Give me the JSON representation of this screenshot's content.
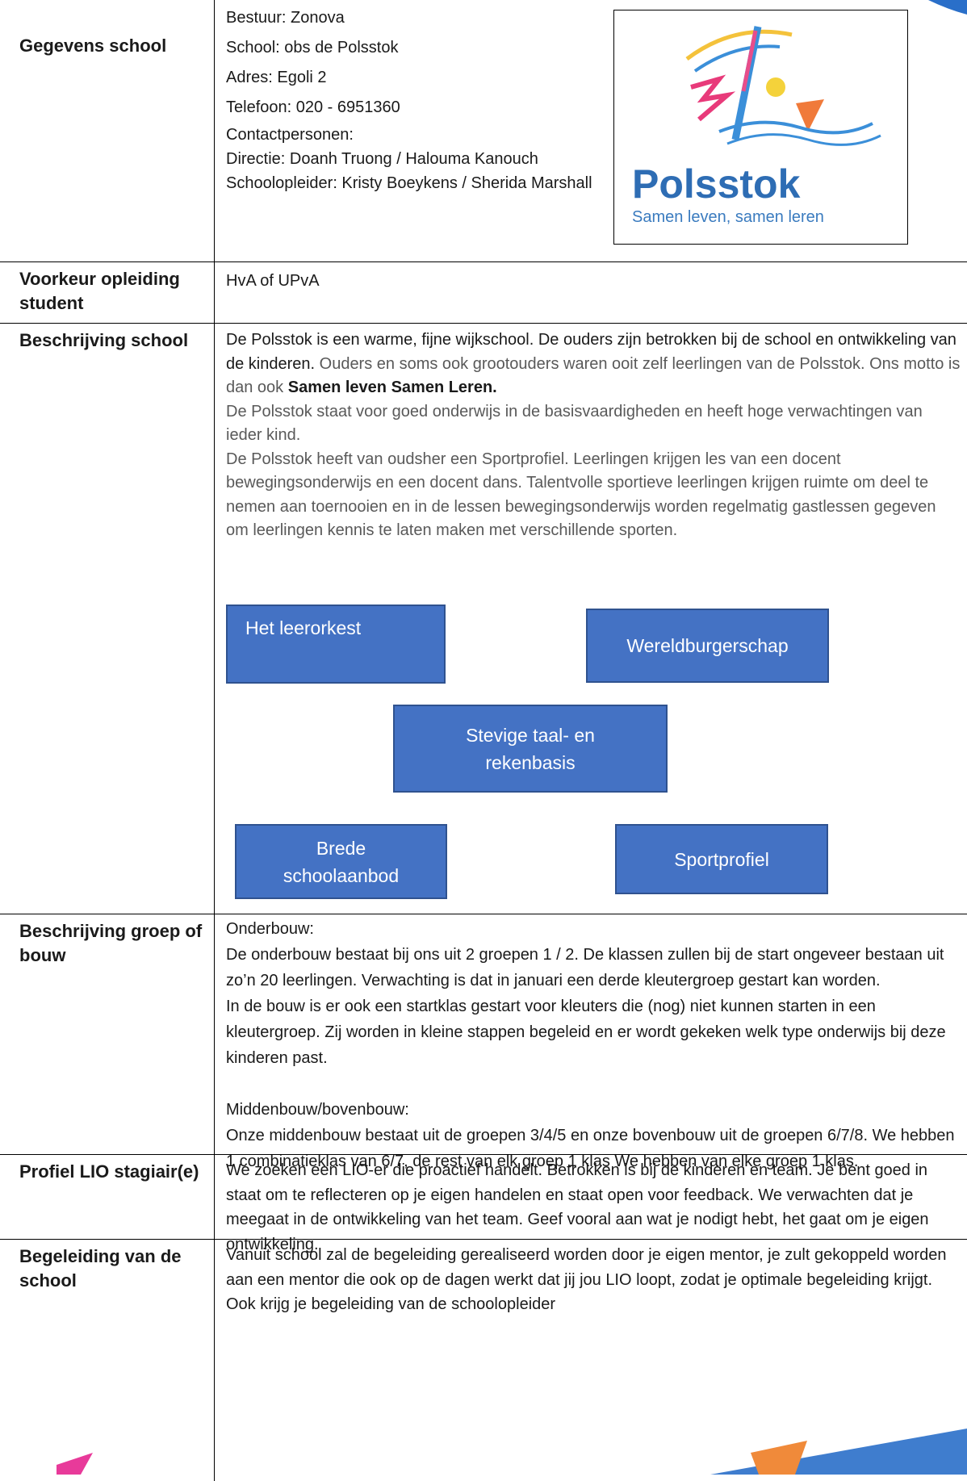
{
  "rows": [
    {
      "label": "Gegevens school",
      "lines": [
        "Bestuur: Zonova",
        "School: obs de Polsstok",
        "Adres: Egoli 2",
        "Telefoon: 020 - 6951360",
        "Contactpersonen:",
        "Directie: Doanh Truong / Halouma Kanouch",
        "Schoolopleider: Kristy Boeykens / Sherida Marshall"
      ]
    },
    {
      "label": "Voorkeur opleiding student",
      "lines": [
        "HvA of UPvA"
      ]
    },
    {
      "label": "Beschrijving school",
      "intro": "De Polsstok is een warme, fijne wijkschool. De ouders zijn betrokken bij de school en ontwikkeling van de kinderen.",
      "intro_grey": " Ouders en soms ook grootouders waren ooit zelf leerlingen van de Polsstok.  Ons motto is dan ook ",
      "motto": "Samen leven Samen Leren.",
      "lines": [
        "De Polsstok staat voor goed onderwijs in de basisvaardigheden en heeft hoge verwachtingen van ieder kind.",
        "De Polsstok heeft van oudsher een Sportprofiel. Leerlingen krijgen les van een docent bewegingsonderwijs en een docent dans. Talentvolle sportieve leerlingen krijgen ruimte om deel te nemen aan toernooien en in de lessen bewegingsonderwijs worden regelmatig gastlessen gegeven om leerlingen kennis te laten maken met verschillende sporten."
      ],
      "blocks": [
        "Het leerorkest",
        "Wereldburgerschap",
        "Stevige taal- en rekenbasis",
        "Brede schoolaanbod",
        "Sportprofiel"
      ]
    },
    {
      "label": "Beschrijving groep of bouw",
      "lines": [
        "Onderbouw:",
        "De onderbouw bestaat bij ons uit 2 groepen 1 / 2. De klassen zullen bij de start ongeveer bestaan uit zo’n 20 leerlingen. Verwachting is dat in januari een derde kleutergroep gestart kan worden.",
        "In de bouw is er ook een startklas gestart voor kleuters die (nog) niet kunnen starten in een kleutergroep. Zij worden in kleine stappen begeleid en er wordt gekeken welk type onderwijs bij deze kinderen past.",
        "Middenbouw/bovenbouw:",
        "Onze middenbouw bestaat uit de groepen 3/4/5 en onze bovenbouw uit de groepen 6/7/8.  We hebben 1 combinatieklas van 6/7, de rest van elk groep 1 klas We hebben van elke groep 1 klas."
      ]
    },
    {
      "label": "Profiel LIO stagiair(e)",
      "lines": [
        "We zoeken een LIO-er die proactief handelt. Betrokken is bij de kinderen en team. Je bent goed in staat om te reflecteren op je eigen handelen en staat open voor feedback. We verwachten dat je meegaat in de ontwikkeling van het team.  Geef vooral aan wat je nodigt hebt, het gaat om je eigen ontwikkeling."
      ]
    },
    {
      "label": "Begeleiding van de school",
      "lines": [
        " Vanuit school zal de begeleiding gerealiseerd worden door je eigen mentor, je zult gekoppeld worden aan een mentor die ook op de dagen werkt dat jij jou LIO loopt, zodat je optimale begeleiding krijgt. Ook krijg je begeleiding van de schoolopleider"
      ]
    }
  ],
  "logo": {
    "name": "Polsstok",
    "tagline": "Samen leven, samen leren"
  }
}
